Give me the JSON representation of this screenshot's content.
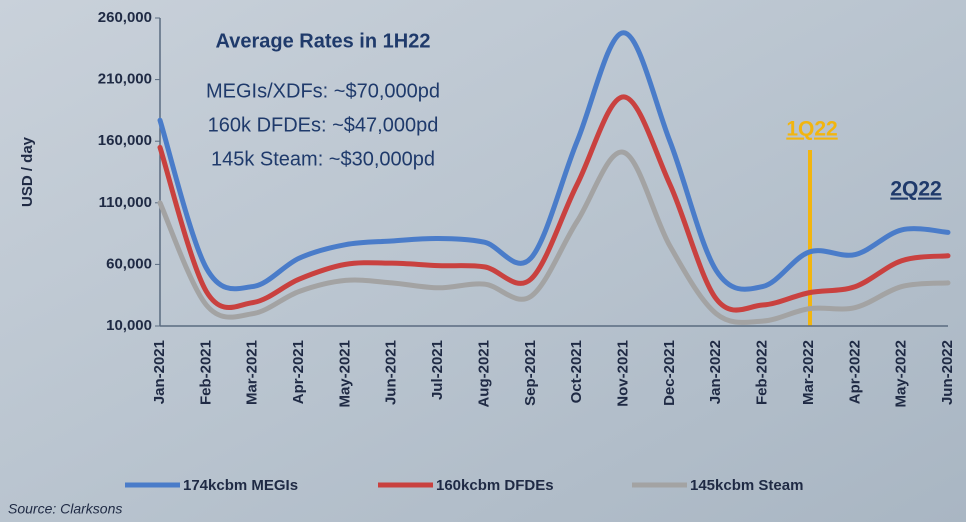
{
  "chart_data": {
    "type": "line",
    "y_label": "USD / day",
    "categories": [
      "Jan-2021",
      "Feb-2021",
      "Mar-2021",
      "Apr-2021",
      "May-2021",
      "Jun-2021",
      "Jul-2021",
      "Aug-2021",
      "Sep-2021",
      "Oct-2021",
      "Nov-2021",
      "Dec-2021",
      "Jan-2022",
      "Feb-2022",
      "Mar-2022",
      "Apr-2022",
      "May-2022",
      "Jun-2022"
    ],
    "series": [
      {
        "name": "174kcbm MEGIs",
        "color": "#4a7cc9",
        "values": [
          177000,
          57000,
          42000,
          65000,
          76000,
          79000,
          81000,
          78000,
          65000,
          160000,
          248000,
          160000,
          55000,
          42000,
          70000,
          68000,
          88000,
          86000
        ]
      },
      {
        "name": "160kcbm DFDEs",
        "color": "#c9413f",
        "values": [
          155000,
          38000,
          29000,
          48000,
          60000,
          61000,
          59000,
          58000,
          48000,
          125000,
          196000,
          125000,
          32000,
          27000,
          37000,
          42000,
          63000,
          67000
        ]
      },
      {
        "name": "145kcbm Steam",
        "color": "#a3a3a3",
        "values": [
          110000,
          27000,
          20000,
          38000,
          47000,
          45000,
          41000,
          44000,
          34000,
          95000,
          151000,
          75000,
          20000,
          14000,
          24000,
          25000,
          42000,
          45000
        ]
      }
    ],
    "ylim": [
      10000,
      260000
    ],
    "yticks": [
      {
        "value": 10000,
        "label": "10,000"
      },
      {
        "value": 60000,
        "label": "60,000"
      },
      {
        "value": 110000,
        "label": "110,000"
      },
      {
        "value": 160000,
        "label": "160,000"
      },
      {
        "value": 210000,
        "label": "210,000"
      },
      {
        "value": 260000,
        "label": "260,000"
      }
    ],
    "annotations": [
      "Average Rates in 1H22",
      "MEGIs/XDFs: ~$70,000pd",
      "160k DFDEs: ~$47,000pd",
      "145k Steam: ~$30,000pd",
      "1Q22",
      "2Q22"
    ],
    "source": "Source: Clarksons"
  }
}
